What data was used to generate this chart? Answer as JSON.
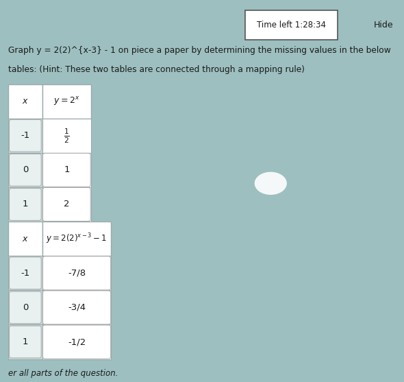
{
  "title_line1": "Graph y = 2(2)^{x-3} - 1 on piece a paper by determining the missing values in the below",
  "title_line2": "tables: (Hint: These two tables are connected through a mapping rule)",
  "timer_text": "Time left 1:28:34",
  "hide_text": "Hide",
  "table1_header": [
    "x",
    "y = 2^x"
  ],
  "table1_rows": [
    [
      "-1",
      "\\frac{1}{2}"
    ],
    [
      "0",
      "1"
    ],
    [
      "1",
      "2"
    ]
  ],
  "table2_header": [
    "x",
    "y = 2(2)^{x-3} - 1"
  ],
  "table2_rows": [
    [
      "-1",
      "-7/8"
    ],
    [
      "0",
      "-3/4"
    ],
    [
      "1",
      "-1/2"
    ]
  ],
  "footer_text": "er all parts of the question.",
  "bg_color": "#9dbfbf",
  "cell_bg": "#ffffff",
  "cell_x_bg": "#c8dada",
  "header_bg": "#ffffff",
  "timer_box_color": "#ffffff",
  "text_color": "#1a1a1a",
  "table_border": "#9aabab"
}
